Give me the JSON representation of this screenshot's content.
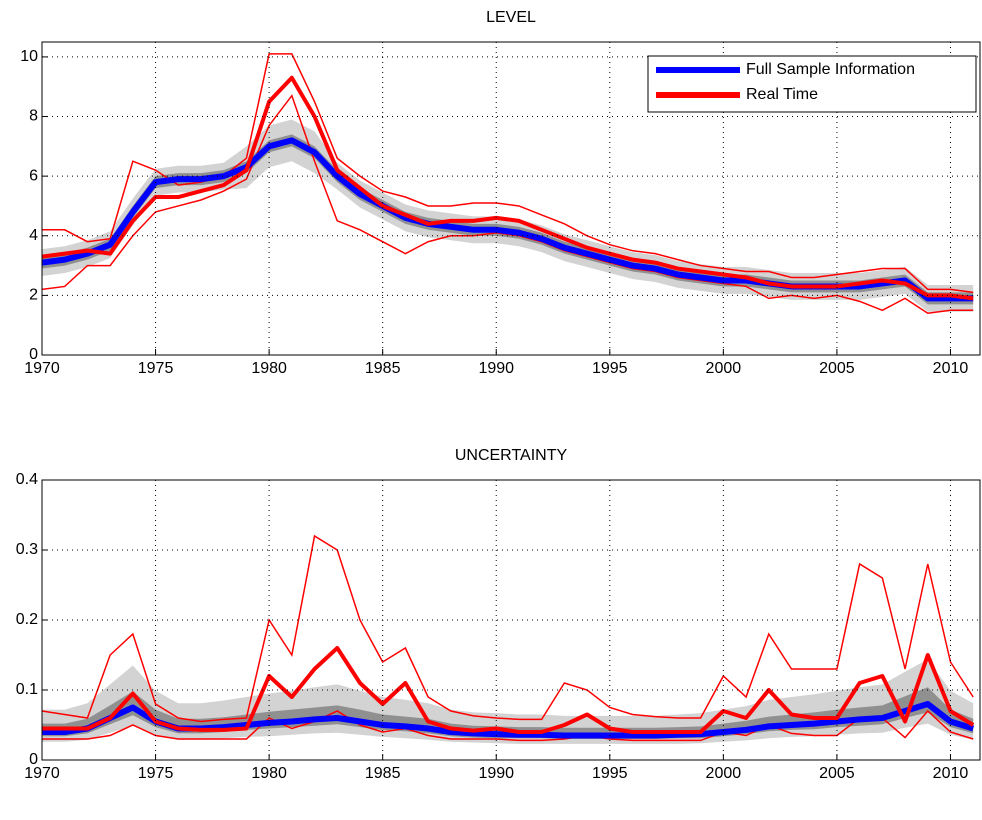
{
  "chart_data": [
    {
      "type": "line",
      "title": "LEVEL",
      "legend": "upper right",
      "grid": true,
      "x": [
        1970,
        1971,
        1972,
        1973,
        1974,
        1975,
        1976,
        1977,
        1978,
        1979,
        1980,
        1981,
        1982,
        1983,
        1984,
        1985,
        1986,
        1987,
        1988,
        1989,
        1990,
        1991,
        1992,
        1993,
        1994,
        1995,
        1996,
        1997,
        1998,
        1999,
        2000,
        2001,
        2002,
        2003,
        2004,
        2005,
        2006,
        2007,
        2008,
        2009,
        2010,
        2011
      ],
      "xlim": [
        1970,
        2011.3
      ],
      "xticks": [
        1970,
        1975,
        1980,
        1985,
        1990,
        1995,
        2000,
        2005,
        2010
      ],
      "ylim": [
        0,
        10.5
      ],
      "yticks": [
        0,
        2,
        4,
        6,
        8,
        10
      ],
      "series": [
        {
          "name": "Full Sample Information",
          "color": "#0000ff",
          "values": [
            3.1,
            3.2,
            3.4,
            3.7,
            4.8,
            5.8,
            5.9,
            5.9,
            6.0,
            6.3,
            7.0,
            7.2,
            6.8,
            6.0,
            5.4,
            5.0,
            4.6,
            4.4,
            4.3,
            4.2,
            4.2,
            4.1,
            3.9,
            3.6,
            3.4,
            3.2,
            3.0,
            2.9,
            2.7,
            2.6,
            2.5,
            2.5,
            2.4,
            2.3,
            2.3,
            2.3,
            2.3,
            2.4,
            2.5,
            1.9,
            1.9,
            1.9
          ],
          "bands": [
            {
              "color": "#c8c8c8",
              "lower": [
                2.65,
                2.75,
                2.95,
                3.25,
                4.35,
                5.35,
                5.45,
                5.45,
                5.55,
                5.6,
                6.3,
                6.5,
                6.1,
                5.55,
                4.95,
                4.55,
                4.15,
                3.95,
                3.85,
                3.75,
                3.75,
                3.65,
                3.45,
                3.15,
                2.95,
                2.75,
                2.55,
                2.45,
                2.25,
                2.15,
                2.05,
                2.05,
                1.95,
                1.85,
                1.85,
                1.85,
                1.85,
                1.95,
                2.05,
                1.45,
                1.45,
                1.45
              ],
              "upper": [
                3.55,
                3.65,
                3.85,
                4.15,
                5.25,
                6.25,
                6.35,
                6.35,
                6.45,
                7.0,
                7.7,
                7.9,
                7.5,
                6.45,
                5.85,
                5.45,
                5.05,
                4.85,
                4.75,
                4.65,
                4.65,
                4.55,
                4.35,
                4.05,
                3.85,
                3.65,
                3.45,
                3.35,
                3.15,
                3.05,
                2.95,
                2.95,
                2.85,
                2.75,
                2.75,
                2.75,
                2.75,
                2.85,
                2.95,
                2.35,
                2.35,
                2.35
              ]
            },
            {
              "color": "#808080",
              "lower": [
                2.9,
                3.0,
                3.2,
                3.5,
                4.6,
                5.6,
                5.7,
                5.7,
                5.8,
                6.1,
                6.8,
                7.0,
                6.6,
                5.8,
                5.2,
                4.8,
                4.4,
                4.2,
                4.1,
                4.0,
                4.0,
                3.9,
                3.7,
                3.4,
                3.2,
                3.0,
                2.8,
                2.7,
                2.5,
                2.4,
                2.3,
                2.3,
                2.2,
                2.1,
                2.1,
                2.1,
                2.1,
                2.2,
                2.3,
                1.7,
                1.7,
                1.7
              ],
              "upper": [
                3.3,
                3.4,
                3.6,
                3.9,
                5.0,
                6.0,
                6.1,
                6.1,
                6.2,
                6.5,
                7.2,
                7.4,
                7.0,
                6.2,
                5.6,
                5.2,
                4.8,
                4.6,
                4.5,
                4.4,
                4.4,
                4.3,
                4.1,
                3.8,
                3.6,
                3.4,
                3.2,
                3.1,
                2.9,
                2.8,
                2.7,
                2.7,
                2.6,
                2.5,
                2.5,
                2.5,
                2.5,
                2.6,
                2.7,
                2.1,
                2.1,
                2.1
              ]
            }
          ]
        },
        {
          "name": "Real Time",
          "color": "#ff0000",
          "values": [
            3.3,
            3.4,
            3.5,
            3.4,
            4.5,
            5.3,
            5.3,
            5.5,
            5.7,
            6.2,
            8.5,
            9.3,
            8.0,
            6.2,
            5.6,
            5.0,
            4.7,
            4.4,
            4.5,
            4.5,
            4.6,
            4.5,
            4.2,
            3.9,
            3.6,
            3.4,
            3.2,
            3.1,
            2.9,
            2.8,
            2.7,
            2.6,
            2.4,
            2.3,
            2.3,
            2.3,
            2.4,
            2.5,
            2.4,
            2.0,
            2.0,
            1.9
          ],
          "upper": [
            4.2,
            4.2,
            3.8,
            3.9,
            6.5,
            6.2,
            5.7,
            5.8,
            6.0,
            6.6,
            10.1,
            10.1,
            8.5,
            6.6,
            6.0,
            5.5,
            5.3,
            5.0,
            5.0,
            5.1,
            5.1,
            5.0,
            4.7,
            4.4,
            4.0,
            3.7,
            3.5,
            3.4,
            3.2,
            3.0,
            2.9,
            2.8,
            2.8,
            2.6,
            2.6,
            2.7,
            2.8,
            2.9,
            2.9,
            2.2,
            2.2,
            2.1
          ],
          "lower": [
            2.2,
            2.3,
            3.0,
            3.0,
            4.0,
            4.8,
            5.0,
            5.2,
            5.5,
            5.9,
            7.7,
            8.7,
            6.5,
            4.5,
            4.2,
            3.8,
            3.4,
            3.8,
            4.0,
            4.0,
            4.1,
            4.0,
            3.8,
            3.5,
            3.3,
            3.1,
            2.9,
            2.8,
            2.6,
            2.5,
            2.4,
            2.3,
            1.9,
            2.0,
            1.9,
            2.0,
            1.8,
            1.5,
            1.9,
            1.4,
            1.5,
            1.5
          ]
        }
      ]
    },
    {
      "type": "line",
      "title": "UNCERTAINTY",
      "grid": true,
      "x": [
        1970,
        1971,
        1972,
        1973,
        1974,
        1975,
        1976,
        1977,
        1978,
        1979,
        1980,
        1981,
        1982,
        1983,
        1984,
        1985,
        1986,
        1987,
        1988,
        1989,
        1990,
        1991,
        1992,
        1993,
        1994,
        1995,
        1996,
        1997,
        1998,
        1999,
        2000,
        2001,
        2002,
        2003,
        2004,
        2005,
        2006,
        2007,
        2008,
        2009,
        2010,
        2011
      ],
      "xlim": [
        1970,
        2011.3
      ],
      "xticks": [
        1970,
        1975,
        1980,
        1985,
        1990,
        1995,
        2000,
        2005,
        2010
      ],
      "ylim": [
        0,
        0.4
      ],
      "yticks": [
        0,
        0.1,
        0.2,
        0.3,
        0.4
      ],
      "series": [
        {
          "name": "Full Sample Information",
          "color": "#0000ff",
          "values": [
            0.04,
            0.04,
            0.045,
            0.06,
            0.075,
            0.055,
            0.045,
            0.045,
            0.047,
            0.05,
            0.053,
            0.055,
            0.058,
            0.06,
            0.055,
            0.05,
            0.048,
            0.045,
            0.04,
            0.038,
            0.037,
            0.036,
            0.036,
            0.035,
            0.035,
            0.035,
            0.035,
            0.035,
            0.036,
            0.037,
            0.04,
            0.043,
            0.048,
            0.05,
            0.052,
            0.055,
            0.058,
            0.06,
            0.07,
            0.08,
            0.055,
            0.045
          ],
          "bands": [
            {
              "color": "#c8c8c8",
              "lower": [
                0.026,
                0.026,
                0.029,
                0.039,
                0.049,
                0.036,
                0.029,
                0.029,
                0.031,
                0.033,
                0.034,
                0.036,
                0.038,
                0.039,
                0.036,
                0.033,
                0.031,
                0.029,
                0.026,
                0.025,
                0.024,
                0.023,
                0.023,
                0.023,
                0.023,
                0.023,
                0.023,
                0.023,
                0.023,
                0.024,
                0.026,
                0.028,
                0.031,
                0.033,
                0.034,
                0.036,
                0.038,
                0.039,
                0.046,
                0.052,
                0.036,
                0.029
              ],
              "upper": [
                0.072,
                0.072,
                0.081,
                0.108,
                0.135,
                0.099,
                0.081,
                0.081,
                0.085,
                0.09,
                0.095,
                0.099,
                0.104,
                0.108,
                0.099,
                0.09,
                0.086,
                0.081,
                0.072,
                0.068,
                0.067,
                0.065,
                0.065,
                0.063,
                0.063,
                0.063,
                0.063,
                0.063,
                0.065,
                0.067,
                0.072,
                0.077,
                0.086,
                0.09,
                0.094,
                0.099,
                0.104,
                0.108,
                0.126,
                0.144,
                0.099,
                0.081
              ]
            },
            {
              "color": "#808080",
              "lower": [
                0.034,
                0.034,
                0.038,
                0.051,
                0.064,
                0.047,
                0.038,
                0.038,
                0.04,
                0.043,
                0.045,
                0.047,
                0.049,
                0.051,
                0.047,
                0.043,
                0.041,
                0.038,
                0.034,
                0.032,
                0.031,
                0.031,
                0.031,
                0.03,
                0.03,
                0.03,
                0.03,
                0.03,
                0.031,
                0.031,
                0.034,
                0.037,
                0.041,
                0.043,
                0.044,
                0.047,
                0.049,
                0.051,
                0.06,
                0.068,
                0.047,
                0.038
              ],
              "upper": [
                0.052,
                0.052,
                0.059,
                0.078,
                0.098,
                0.072,
                0.059,
                0.059,
                0.061,
                0.065,
                0.069,
                0.072,
                0.075,
                0.078,
                0.072,
                0.065,
                0.062,
                0.059,
                0.052,
                0.049,
                0.048,
                0.047,
                0.047,
                0.046,
                0.046,
                0.046,
                0.046,
                0.046,
                0.047,
                0.048,
                0.052,
                0.056,
                0.062,
                0.065,
                0.068,
                0.072,
                0.075,
                0.078,
                0.091,
                0.104,
                0.072,
                0.059
              ]
            }
          ]
        },
        {
          "name": "Real Time",
          "color": "#ff0000",
          "values": [
            0.045,
            0.045,
            0.045,
            0.06,
            0.095,
            0.055,
            0.045,
            0.043,
            0.043,
            0.045,
            0.12,
            0.09,
            0.13,
            0.16,
            0.11,
            0.08,
            0.11,
            0.055,
            0.045,
            0.042,
            0.045,
            0.04,
            0.04,
            0.05,
            0.065,
            0.045,
            0.04,
            0.04,
            0.04,
            0.04,
            0.07,
            0.06,
            0.1,
            0.065,
            0.06,
            0.06,
            0.11,
            0.12,
            0.055,
            0.15,
            0.07,
            0.05
          ],
          "upper": [
            0.07,
            0.065,
            0.06,
            0.15,
            0.18,
            0.08,
            0.06,
            0.055,
            0.058,
            0.06,
            0.2,
            0.15,
            0.32,
            0.3,
            0.2,
            0.14,
            0.16,
            0.09,
            0.07,
            0.063,
            0.06,
            0.058,
            0.058,
            0.11,
            0.1,
            0.075,
            0.065,
            0.062,
            0.06,
            0.06,
            0.12,
            0.09,
            0.18,
            0.13,
            0.13,
            0.13,
            0.28,
            0.26,
            0.13,
            0.28,
            0.14,
            0.09
          ],
          "lower": [
            0.03,
            0.03,
            0.03,
            0.035,
            0.05,
            0.035,
            0.03,
            0.03,
            0.03,
            0.03,
            0.06,
            0.045,
            0.055,
            0.07,
            0.05,
            0.04,
            0.045,
            0.035,
            0.03,
            0.03,
            0.03,
            0.028,
            0.028,
            0.03,
            0.035,
            0.03,
            0.028,
            0.028,
            0.028,
            0.028,
            0.04,
            0.035,
            0.05,
            0.038,
            0.035,
            0.035,
            0.06,
            0.06,
            0.032,
            0.07,
            0.04,
            0.03
          ]
        }
      ]
    }
  ]
}
